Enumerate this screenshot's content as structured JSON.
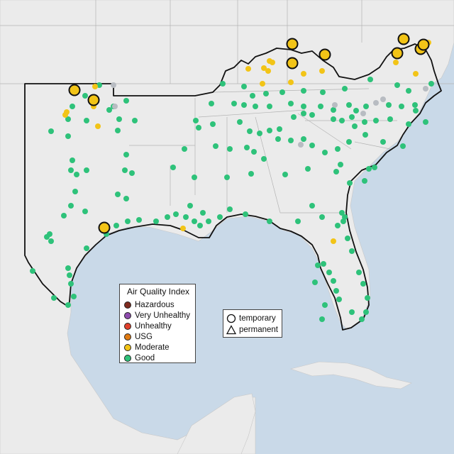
{
  "legend": {
    "title": "Air Quality Index",
    "categories": [
      {
        "label": "Hazardous",
        "color": "#7e2a1e"
      },
      {
        "label": "Very Unhealthy",
        "color": "#8e4cad"
      },
      {
        "label": "Unhealthy",
        "color": "#e0402c"
      },
      {
        "label": "USG",
        "color": "#e07b12"
      },
      {
        "label": "Moderate",
        "color": "#f2c417"
      },
      {
        "label": "Good",
        "color": "#2ec27a"
      }
    ]
  },
  "shape_legend": {
    "items": [
      {
        "label": "temporary",
        "icon": "circle-icon"
      },
      {
        "label": "permanent",
        "icon": "triangle-icon"
      }
    ]
  },
  "colors": {
    "ocean": "#c4d6e6",
    "land": "#ececec",
    "region_fill": "#f2f2f2",
    "region_outline": "#111111",
    "state_border": "#aaaaaa",
    "no_data": "#b8bcc2"
  }
}
